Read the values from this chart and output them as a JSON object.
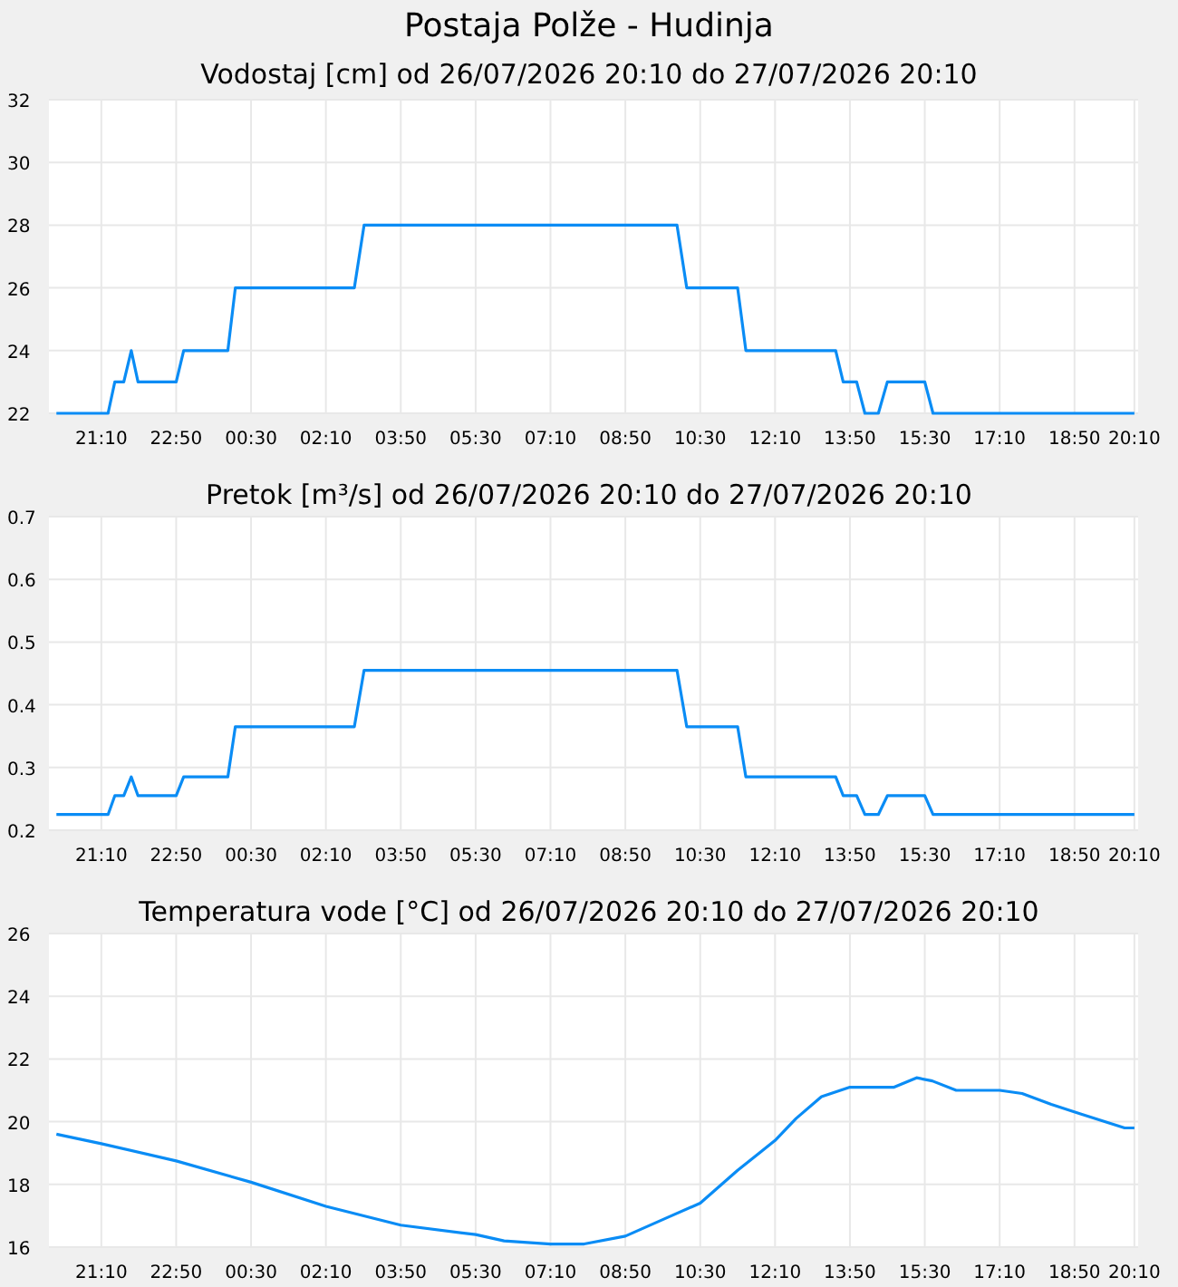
{
  "chart_data": [
    {
      "type": "line",
      "title": "Postaja Polže - Hudinja",
      "subtitle": "Vodostaj [cm] od 26/07/2026 20:10 do 27/07/2026 20:10",
      "grid": true,
      "xlim": [
        "2026-07-26T20:00",
        "2026-07-27T20:15"
      ],
      "xticks": [
        {
          "value": "2026-07-26T21:10",
          "label": "21:10"
        },
        {
          "value": "2026-07-26T22:50",
          "label": "22:50"
        },
        {
          "value": "2026-07-27T00:30",
          "label": "00:30"
        },
        {
          "value": "2026-07-27T02:10",
          "label": "02:10"
        },
        {
          "value": "2026-07-27T03:50",
          "label": "03:50"
        },
        {
          "value": "2026-07-27T05:30",
          "label": "05:30"
        },
        {
          "value": "2026-07-27T07:10",
          "label": "07:10"
        },
        {
          "value": "2026-07-27T08:50",
          "label": "08:50"
        },
        {
          "value": "2026-07-27T10:30",
          "label": "10:30"
        },
        {
          "value": "2026-07-27T12:10",
          "label": "12:10"
        },
        {
          "value": "2026-07-27T13:50",
          "label": "13:50"
        },
        {
          "value": "2026-07-27T15:30",
          "label": "15:30"
        },
        {
          "value": "2026-07-27T17:10",
          "label": "17:10"
        },
        {
          "value": "2026-07-27T18:50",
          "label": "18:50"
        },
        {
          "value": "2026-07-27T20:10",
          "label": "20:10"
        }
      ],
      "ylim": [
        22,
        32
      ],
      "yticks": [
        22,
        24,
        26,
        28,
        30,
        32
      ],
      "series": [
        {
          "color": "#0a8cf5",
          "x": [
            "2026-07-26T20:10",
            "2026-07-26T21:19",
            "2026-07-26T21:28",
            "2026-07-26T21:40",
            "2026-07-26T21:50",
            "2026-07-26T21:59",
            "2026-07-26T22:50",
            "2026-07-26T23:00",
            "2026-07-26T23:59",
            "2026-07-27T00:09",
            "2026-07-27T02:48",
            "2026-07-27T03:01",
            "2026-07-27T09:59",
            "2026-07-27T10:12",
            "2026-07-27T11:20",
            "2026-07-27T11:31",
            "2026-07-27T13:31",
            "2026-07-27T13:41",
            "2026-07-27T13:59",
            "2026-07-27T14:10",
            "2026-07-27T14:28",
            "2026-07-27T14:40",
            "2026-07-27T15:30",
            "2026-07-27T15:41",
            "2026-07-27T20:10"
          ],
          "values": [
            22,
            22,
            23,
            23,
            24,
            23,
            23,
            24,
            24,
            26,
            26,
            28,
            28,
            26,
            26,
            24,
            24,
            23,
            23,
            22,
            22,
            23,
            23,
            22,
            22
          ]
        }
      ]
    },
    {
      "type": "line",
      "title": "Pretok [m³/s] od 26/07/2026 20:10 do 27/07/2026 20:10",
      "grid": true,
      "xlim": [
        "2026-07-26T20:00",
        "2026-07-27T20:15"
      ],
      "xticks": [
        {
          "value": "2026-07-26T21:10",
          "label": "21:10"
        },
        {
          "value": "2026-07-26T22:50",
          "label": "22:50"
        },
        {
          "value": "2026-07-27T00:30",
          "label": "00:30"
        },
        {
          "value": "2026-07-27T02:10",
          "label": "02:10"
        },
        {
          "value": "2026-07-27T03:50",
          "label": "03:50"
        },
        {
          "value": "2026-07-27T05:30",
          "label": "05:30"
        },
        {
          "value": "2026-07-27T07:10",
          "label": "07:10"
        },
        {
          "value": "2026-07-27T08:50",
          "label": "08:50"
        },
        {
          "value": "2026-07-27T10:30",
          "label": "10:30"
        },
        {
          "value": "2026-07-27T12:10",
          "label": "12:10"
        },
        {
          "value": "2026-07-27T13:50",
          "label": "13:50"
        },
        {
          "value": "2026-07-27T15:30",
          "label": "15:30"
        },
        {
          "value": "2026-07-27T17:10",
          "label": "17:10"
        },
        {
          "value": "2026-07-27T18:50",
          "label": "18:50"
        },
        {
          "value": "2026-07-27T20:10",
          "label": "20:10"
        }
      ],
      "ylim": [
        0.2,
        0.7
      ],
      "yticks": [
        0.2,
        0.3,
        0.4,
        0.5,
        0.6,
        0.7
      ],
      "series": [
        {
          "color": "#0a8cf5",
          "x": [
            "2026-07-26T20:10",
            "2026-07-26T21:19",
            "2026-07-26T21:28",
            "2026-07-26T21:40",
            "2026-07-26T21:50",
            "2026-07-26T21:59",
            "2026-07-26T22:50",
            "2026-07-26T23:00",
            "2026-07-26T23:59",
            "2026-07-27T00:09",
            "2026-07-27T02:48",
            "2026-07-27T03:01",
            "2026-07-27T09:59",
            "2026-07-27T10:12",
            "2026-07-27T11:20",
            "2026-07-27T11:31",
            "2026-07-27T13:31",
            "2026-07-27T13:41",
            "2026-07-27T13:59",
            "2026-07-27T14:10",
            "2026-07-27T14:28",
            "2026-07-27T14:40",
            "2026-07-27T15:30",
            "2026-07-27T15:41",
            "2026-07-27T20:10"
          ],
          "values": [
            0.225,
            0.225,
            0.255,
            0.255,
            0.285,
            0.255,
            0.255,
            0.285,
            0.285,
            0.365,
            0.365,
            0.455,
            0.455,
            0.365,
            0.365,
            0.285,
            0.285,
            0.255,
            0.255,
            0.225,
            0.225,
            0.255,
            0.255,
            0.225,
            0.225
          ]
        }
      ]
    },
    {
      "type": "line",
      "title": "Temperatura vode [°C] od 26/07/2026 20:10 do 27/07/2026 20:10",
      "grid": true,
      "xlim": [
        "2026-07-26T20:00",
        "2026-07-27T20:15"
      ],
      "xticks": [
        {
          "value": "2026-07-26T21:10",
          "label": "21:10"
        },
        {
          "value": "2026-07-26T22:50",
          "label": "22:50"
        },
        {
          "value": "2026-07-27T00:30",
          "label": "00:30"
        },
        {
          "value": "2026-07-27T02:10",
          "label": "02:10"
        },
        {
          "value": "2026-07-27T03:50",
          "label": "03:50"
        },
        {
          "value": "2026-07-27T05:30",
          "label": "05:30"
        },
        {
          "value": "2026-07-27T07:10",
          "label": "07:10"
        },
        {
          "value": "2026-07-27T08:50",
          "label": "08:50"
        },
        {
          "value": "2026-07-27T10:30",
          "label": "10:30"
        },
        {
          "value": "2026-07-27T12:10",
          "label": "12:10"
        },
        {
          "value": "2026-07-27T13:50",
          "label": "13:50"
        },
        {
          "value": "2026-07-27T15:30",
          "label": "15:30"
        },
        {
          "value": "2026-07-27T17:10",
          "label": "17:10"
        },
        {
          "value": "2026-07-27T18:50",
          "label": "18:50"
        },
        {
          "value": "2026-07-27T20:10",
          "label": "20:10"
        }
      ],
      "ylim": [
        16,
        26
      ],
      "yticks": [
        16,
        18,
        20,
        22,
        24,
        26
      ],
      "series": [
        {
          "color": "#0a8cf5",
          "x": [
            "2026-07-26T20:10",
            "2026-07-26T21:10",
            "2026-07-26T22:50",
            "2026-07-27T00:30",
            "2026-07-27T02:10",
            "2026-07-27T03:50",
            "2026-07-27T05:30",
            "2026-07-27T06:08",
            "2026-07-27T07:10",
            "2026-07-27T07:55",
            "2026-07-27T08:50",
            "2026-07-27T09:42",
            "2026-07-27T10:30",
            "2026-07-27T11:20",
            "2026-07-27T12:10",
            "2026-07-27T12:38",
            "2026-07-27T13:12",
            "2026-07-27T13:50",
            "2026-07-27T14:49",
            "2026-07-27T15:19",
            "2026-07-27T15:40",
            "2026-07-27T16:12",
            "2026-07-27T17:10",
            "2026-07-27T17:40",
            "2026-07-27T18:19",
            "2026-07-27T18:58",
            "2026-07-27T19:37",
            "2026-07-27T19:57",
            "2026-07-27T20:10"
          ],
          "values": [
            19.6,
            19.3,
            18.75,
            18.07,
            17.3,
            16.7,
            16.4,
            16.2,
            16.1,
            16.1,
            16.35,
            16.9,
            17.4,
            18.45,
            19.4,
            20.1,
            20.8,
            21.1,
            21.1,
            21.4,
            21.3,
            21.0,
            21.0,
            20.9,
            20.55,
            20.25,
            19.95,
            19.8,
            19.8
          ]
        }
      ]
    }
  ]
}
